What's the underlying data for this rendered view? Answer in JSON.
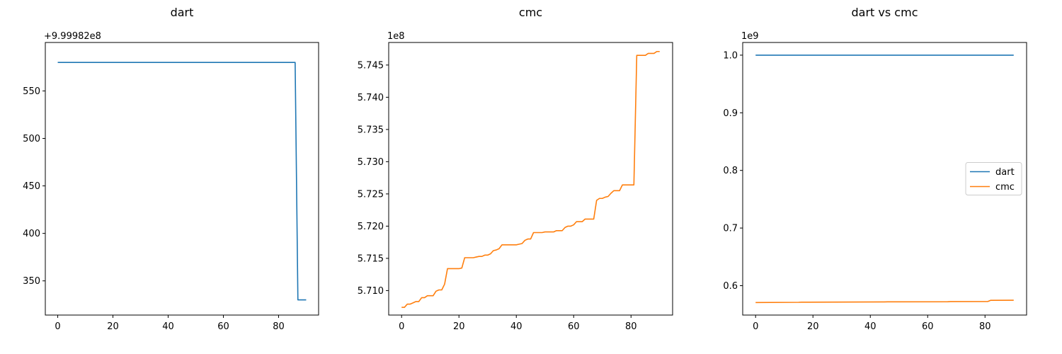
{
  "colors": {
    "dart": "#1f77b4",
    "cmc": "#ff7f0e",
    "axis": "#000000",
    "legend_border": "#cccccc"
  },
  "chart_data": [
    {
      "type": "line",
      "title": "dart",
      "xlabel": "",
      "ylabel": "",
      "xlim": [
        -4.5,
        94.5
      ],
      "ylim": [
        314,
        601
      ],
      "x_ticks": [
        0,
        20,
        40,
        60,
        80
      ],
      "x_tick_labels": [
        "0",
        "20",
        "40",
        "60",
        "80"
      ],
      "y_ticks": [
        350,
        400,
        450,
        500,
        550
      ],
      "y_tick_labels": [
        "350",
        "400",
        "450",
        "500",
        "550"
      ],
      "offset_label": "+9.99982e8",
      "grid": false,
      "series": [
        {
          "color_key": "dart",
          "points": [
            [
              0,
              580
            ],
            [
              86,
              580
            ],
            [
              87,
              330
            ],
            [
              90,
              330
            ]
          ]
        }
      ]
    },
    {
      "type": "line",
      "title": "cmc",
      "xlabel": "",
      "ylabel": "",
      "xlim": [
        -4.5,
        94.5
      ],
      "ylim": [
        5.7062,
        5.7485
      ],
      "x_ticks": [
        0,
        20,
        40,
        60,
        80
      ],
      "x_tick_labels": [
        "0",
        "20",
        "40",
        "60",
        "80"
      ],
      "y_ticks": [
        5.71,
        5.715,
        5.72,
        5.725,
        5.73,
        5.735,
        5.74,
        5.745
      ],
      "y_tick_labels": [
        "5.710",
        "5.715",
        "5.720",
        "5.725",
        "5.730",
        "5.735",
        "5.740",
        "5.745"
      ],
      "offset_label": "1e8",
      "grid": false,
      "series": [
        {
          "color_key": "cmc",
          "points": [
            [
              0,
              5.7074
            ],
            [
              1,
              5.7074
            ],
            [
              2,
              5.7079
            ],
            [
              3,
              5.7079
            ],
            [
              4,
              5.7081
            ],
            [
              5,
              5.7083
            ],
            [
              6,
              5.7083
            ],
            [
              7,
              5.7089
            ],
            [
              8,
              5.7089
            ],
            [
              9,
              5.7092
            ],
            [
              10,
              5.7092
            ],
            [
              11,
              5.7092
            ],
            [
              12,
              5.7099
            ],
            [
              13,
              5.7101
            ],
            [
              14,
              5.7101
            ],
            [
              15,
              5.711
            ],
            [
              16,
              5.7134
            ],
            [
              17,
              5.7134
            ],
            [
              18,
              5.7134
            ],
            [
              19,
              5.7134
            ],
            [
              20,
              5.7134
            ],
            [
              21,
              5.7135
            ],
            [
              22,
              5.7151
            ],
            [
              23,
              5.7151
            ],
            [
              24,
              5.7151
            ],
            [
              25,
              5.7151
            ],
            [
              26,
              5.7152
            ],
            [
              27,
              5.7153
            ],
            [
              28,
              5.7153
            ],
            [
              29,
              5.7155
            ],
            [
              30,
              5.7155
            ],
            [
              31,
              5.7157
            ],
            [
              32,
              5.7162
            ],
            [
              33,
              5.7163
            ],
            [
              34,
              5.7165
            ],
            [
              35,
              5.7171
            ],
            [
              36,
              5.7171
            ],
            [
              37,
              5.7171
            ],
            [
              38,
              5.7171
            ],
            [
              39,
              5.7171
            ],
            [
              40,
              5.7171
            ],
            [
              41,
              5.7172
            ],
            [
              42,
              5.7173
            ],
            [
              43,
              5.7178
            ],
            [
              44,
              5.718
            ],
            [
              45,
              5.718
            ],
            [
              46,
              5.719
            ],
            [
              47,
              5.719
            ],
            [
              48,
              5.719
            ],
            [
              49,
              5.719
            ],
            [
              50,
              5.7191
            ],
            [
              51,
              5.7191
            ],
            [
              52,
              5.7191
            ],
            [
              53,
              5.7191
            ],
            [
              54,
              5.7193
            ],
            [
              55,
              5.7193
            ],
            [
              56,
              5.7193
            ],
            [
              57,
              5.7198
            ],
            [
              58,
              5.72
            ],
            [
              59,
              5.72
            ],
            [
              60,
              5.7202
            ],
            [
              61,
              5.7207
            ],
            [
              62,
              5.7207
            ],
            [
              63,
              5.7207
            ],
            [
              64,
              5.7211
            ],
            [
              65,
              5.7211
            ],
            [
              66,
              5.7211
            ],
            [
              67,
              5.7211
            ],
            [
              68,
              5.724
            ],
            [
              69,
              5.7243
            ],
            [
              70,
              5.7243
            ],
            [
              71,
              5.7245
            ],
            [
              72,
              5.7246
            ],
            [
              73,
              5.7251
            ],
            [
              74,
              5.7255
            ],
            [
              75,
              5.7255
            ],
            [
              76,
              5.7255
            ],
            [
              77,
              5.7264
            ],
            [
              78,
              5.7264
            ],
            [
              79,
              5.7264
            ],
            [
              80,
              5.7264
            ],
            [
              81,
              5.7264
            ],
            [
              82,
              5.7465
            ],
            [
              83,
              5.7465
            ],
            [
              84,
              5.7465
            ],
            [
              85,
              5.7465
            ],
            [
              86,
              5.7468
            ],
            [
              87,
              5.7468
            ],
            [
              88,
              5.7468
            ],
            [
              89,
              5.7471
            ],
            [
              90,
              5.7471
            ]
          ]
        }
      ]
    },
    {
      "type": "line",
      "title": "dart vs cmc",
      "xlabel": "",
      "ylabel": "",
      "xlim": [
        -4.5,
        94.5
      ],
      "ylim": [
        0.549,
        1.022
      ],
      "x_ticks": [
        0,
        20,
        40,
        60,
        80
      ],
      "x_tick_labels": [
        "0",
        "20",
        "40",
        "60",
        "80"
      ],
      "y_ticks": [
        0.6,
        0.7,
        0.8,
        0.9,
        1.0
      ],
      "y_tick_labels": [
        "0.6",
        "0.7",
        "0.8",
        "0.9",
        "1.0"
      ],
      "offset_label": "1e9",
      "grid": false,
      "legend": {
        "placement": "center-right",
        "entries": [
          "dart",
          "cmc"
        ]
      },
      "series": [
        {
          "name": "dart",
          "color_key": "dart",
          "points": [
            [
              0,
              0.99998
            ],
            [
              90,
              0.99998
            ]
          ]
        },
        {
          "name": "cmc",
          "color_key": "cmc",
          "points": [
            [
              0,
              0.5707
            ],
            [
              15,
              0.5711
            ],
            [
              16,
              0.5713
            ],
            [
              45,
              0.5718
            ],
            [
              46,
              0.5719
            ],
            [
              67,
              0.5721
            ],
            [
              68,
              0.5724
            ],
            [
              81,
              0.5726
            ],
            [
              82,
              0.5746
            ],
            [
              90,
              0.5747
            ]
          ]
        }
      ]
    }
  ]
}
